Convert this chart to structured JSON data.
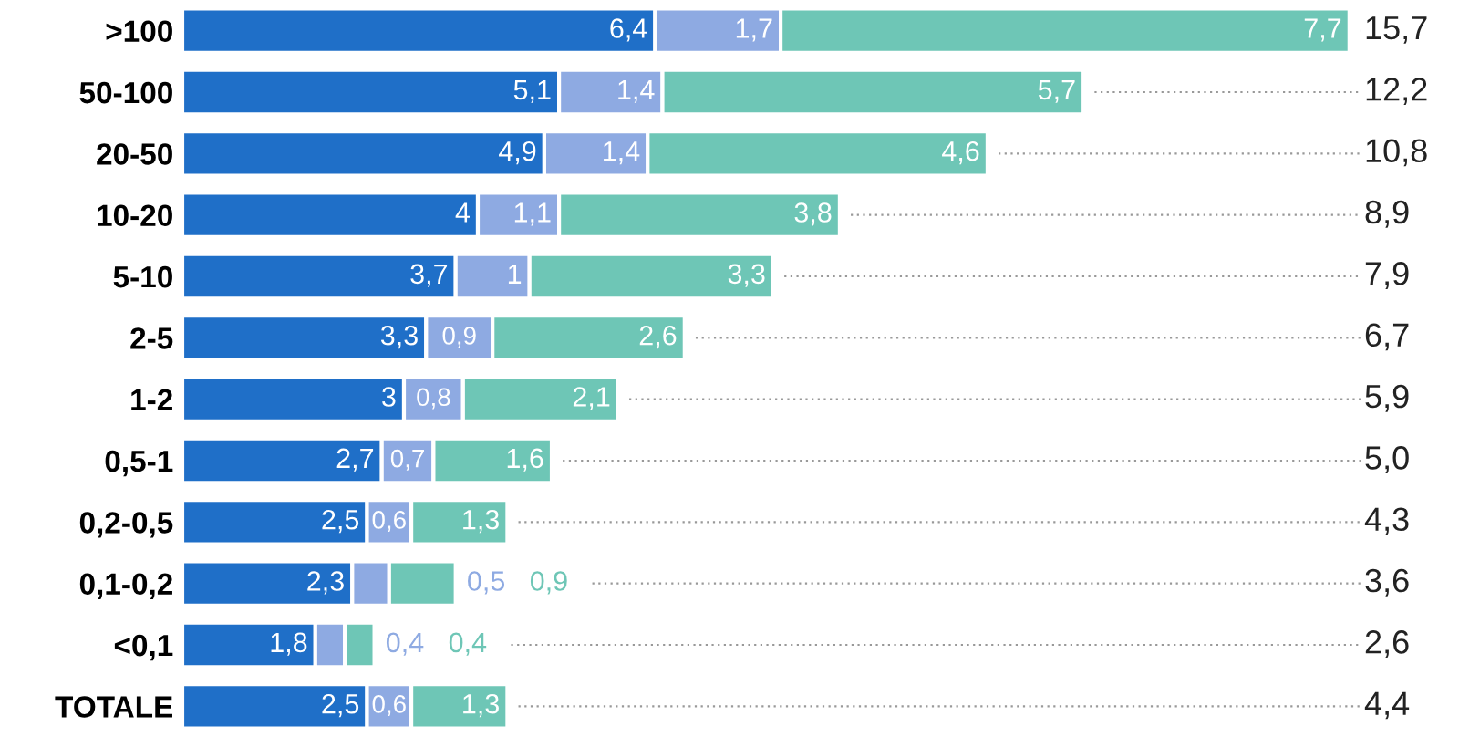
{
  "chart_data": {
    "type": "bar",
    "orientation": "horizontal",
    "stacked": true,
    "categories": [
      ">100",
      "50-100",
      "20-50",
      "10-20",
      "5-10",
      "2-5",
      "1-2",
      "0,5-1",
      "0,2-0,5",
      "0,1-0,2",
      "<0,1",
      "TOTALE"
    ],
    "series": [
      {
        "color": "#1f6fc8",
        "values": [
          6.4,
          5.1,
          4.9,
          4.0,
          3.7,
          3.3,
          3.0,
          2.7,
          2.5,
          2.3,
          1.8,
          2.5
        ],
        "value_labels": [
          "6,4",
          "5,1",
          "4,9",
          "4",
          "3,7",
          "3,3",
          "3",
          "2,7",
          "2,5",
          "2,3",
          "1,8",
          "2,5"
        ]
      },
      {
        "color": "#8eaae2",
        "values": [
          1.7,
          1.4,
          1.4,
          1.1,
          1.0,
          0.9,
          0.8,
          0.7,
          0.6,
          0.5,
          0.4,
          0.6
        ],
        "value_labels": [
          "1,7",
          "1,4",
          "1,4",
          "1,1",
          "1",
          "0,9",
          "0,8",
          "0,7",
          "0,6",
          "0,5",
          "0,4",
          "0,6"
        ]
      },
      {
        "color": "#6ec6b6",
        "values": [
          7.7,
          5.7,
          4.6,
          3.8,
          3.3,
          2.6,
          2.1,
          1.6,
          1.3,
          0.9,
          0.4,
          1.3
        ],
        "value_labels": [
          "7,7",
          "5,7",
          "4,6",
          "3,8",
          "3,3",
          "2,6",
          "2,1",
          "1,6",
          "1,3",
          "0,9",
          "0,4",
          "1,3"
        ]
      }
    ],
    "annotations": [
      "15,7",
      "12,2",
      "10,8",
      "8,9",
      "7,9",
      "6,7",
      "5,9",
      "5,0",
      "4,3",
      "3,6",
      "2,6",
      "4,4"
    ],
    "xlim": [
      0,
      16.0
    ],
    "tick_labels": "y",
    "grid": false,
    "legend": false
  }
}
